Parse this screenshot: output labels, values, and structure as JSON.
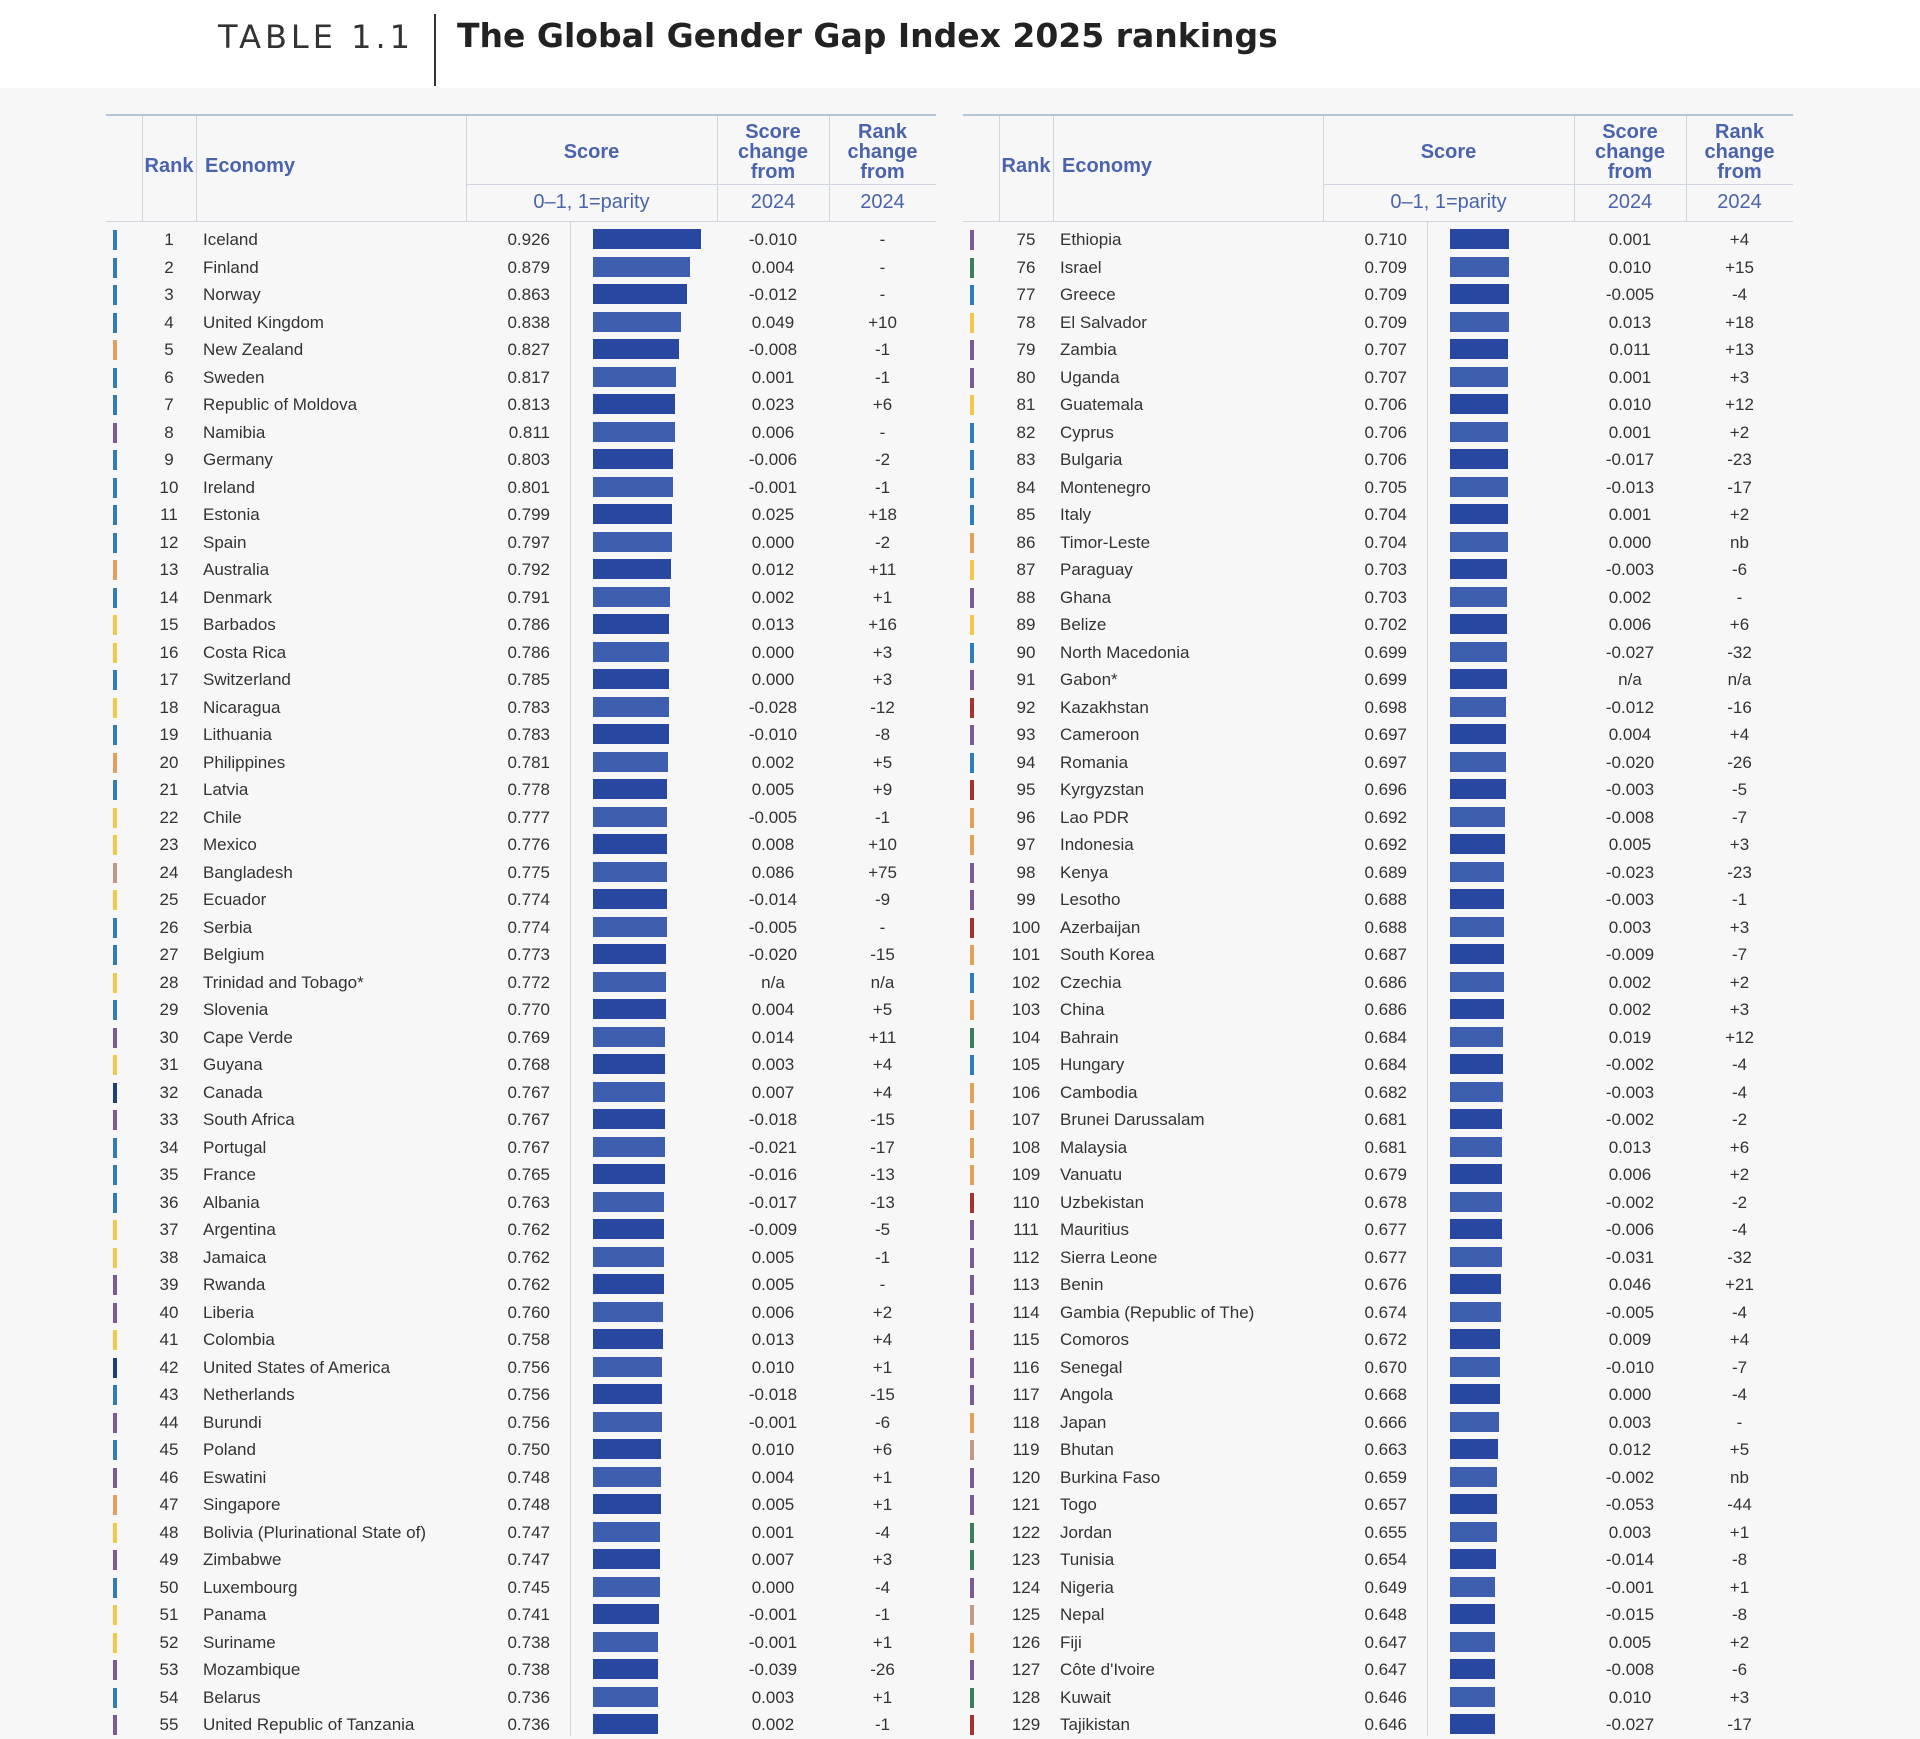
{
  "header": {
    "table_label": "TABLE 1.1",
    "title": "The Global Gender Gap Index 2025 rankings"
  },
  "columns": {
    "rank": "Rank",
    "economy": "Economy",
    "score": "Score",
    "score_sub": "0–1, 1=parity",
    "score_change": [
      "Score",
      "change",
      "from"
    ],
    "score_change_sub": "2024",
    "rank_change": [
      "Rank",
      "change",
      "from"
    ],
    "rank_change_sub": "2024"
  },
  "region_colors": {
    "Europe": "#2f7dbd",
    "Sub-Saharan Africa": "#7d5a96",
    "Latin America and the Caribbean": "#f2c84b",
    "East Asia and the Pacific": "#e0a15b",
    "Central Asia": "#a3352f",
    "Middle East and North Africa": "#3e7d5c",
    "Southern Asia": "#c29a84",
    "Northern America": "#1f3f7a"
  },
  "bar_scale_min": 0.45,
  "left_rows": [
    {
      "rank": "1",
      "economy": "Iceland",
      "score": 0.926,
      "score_change": "-0.010",
      "rank_change": "-",
      "color": "#2f7dbd"
    },
    {
      "rank": "2",
      "economy": "Finland",
      "score": 0.879,
      "score_change": "0.004",
      "rank_change": "-",
      "color": "#2f7dbd"
    },
    {
      "rank": "3",
      "economy": "Norway",
      "score": 0.863,
      "score_change": "-0.012",
      "rank_change": "-",
      "color": "#2f7dbd"
    },
    {
      "rank": "4",
      "economy": "United Kingdom",
      "score": 0.838,
      "score_change": "0.049",
      "rank_change": "+10",
      "color": "#2f7dbd"
    },
    {
      "rank": "5",
      "economy": "New Zealand",
      "score": 0.827,
      "score_change": "-0.008",
      "rank_change": "-1",
      "color": "#e0a15b"
    },
    {
      "rank": "6",
      "economy": "Sweden",
      "score": 0.817,
      "score_change": "0.001",
      "rank_change": "-1",
      "color": "#2f7dbd"
    },
    {
      "rank": "7",
      "economy": "Republic of Moldova",
      "score": 0.813,
      "score_change": "0.023",
      "rank_change": "+6",
      "color": "#2f7dbd"
    },
    {
      "rank": "8",
      "economy": "Namibia",
      "score": 0.811,
      "score_change": "0.006",
      "rank_change": "-",
      "color": "#7d5a96"
    },
    {
      "rank": "9",
      "economy": "Germany",
      "score": 0.803,
      "score_change": "-0.006",
      "rank_change": "-2",
      "color": "#2f7dbd"
    },
    {
      "rank": "10",
      "economy": "Ireland",
      "score": 0.801,
      "score_change": "-0.001",
      "rank_change": "-1",
      "color": "#2f7dbd"
    },
    {
      "rank": "11",
      "economy": "Estonia",
      "score": 0.799,
      "score_change": "0.025",
      "rank_change": "+18",
      "color": "#2f7dbd"
    },
    {
      "rank": "12",
      "economy": "Spain",
      "score": 0.797,
      "score_change": "0.000",
      "rank_change": "-2",
      "color": "#2f7dbd"
    },
    {
      "rank": "13",
      "economy": "Australia",
      "score": 0.792,
      "score_change": "0.012",
      "rank_change": "+11",
      "color": "#e0a15b"
    },
    {
      "rank": "14",
      "economy": "Denmark",
      "score": 0.791,
      "score_change": "0.002",
      "rank_change": "+1",
      "color": "#2f7dbd"
    },
    {
      "rank": "15",
      "economy": "Barbados",
      "score": 0.786,
      "score_change": "0.013",
      "rank_change": "+16",
      "color": "#f2c84b"
    },
    {
      "rank": "16",
      "economy": "Costa Rica",
      "score": 0.786,
      "score_change": "0.000",
      "rank_change": "+3",
      "color": "#f2c84b"
    },
    {
      "rank": "17",
      "economy": "Switzerland",
      "score": 0.785,
      "score_change": "0.000",
      "rank_change": "+3",
      "color": "#2f7dbd"
    },
    {
      "rank": "18",
      "economy": "Nicaragua",
      "score": 0.783,
      "score_change": "-0.028",
      "rank_change": "-12",
      "color": "#f2c84b"
    },
    {
      "rank": "19",
      "economy": "Lithuania",
      "score": 0.783,
      "score_change": "-0.010",
      "rank_change": "-8",
      "color": "#2f7dbd"
    },
    {
      "rank": "20",
      "economy": "Philippines",
      "score": 0.781,
      "score_change": "0.002",
      "rank_change": "+5",
      "color": "#e0a15b"
    },
    {
      "rank": "21",
      "economy": "Latvia",
      "score": 0.778,
      "score_change": "0.005",
      "rank_change": "+9",
      "color": "#2f7dbd"
    },
    {
      "rank": "22",
      "economy": "Chile",
      "score": 0.777,
      "score_change": "-0.005",
      "rank_change": "-1",
      "color": "#f2c84b"
    },
    {
      "rank": "23",
      "economy": "Mexico",
      "score": 0.776,
      "score_change": "0.008",
      "rank_change": "+10",
      "color": "#f2c84b"
    },
    {
      "rank": "24",
      "economy": "Bangladesh",
      "score": 0.775,
      "score_change": "0.086",
      "rank_change": "+75",
      "color": "#c29a84"
    },
    {
      "rank": "25",
      "economy": "Ecuador",
      "score": 0.774,
      "score_change": "-0.014",
      "rank_change": "-9",
      "color": "#f2c84b"
    },
    {
      "rank": "26",
      "economy": "Serbia",
      "score": 0.774,
      "score_change": "-0.005",
      "rank_change": "-",
      "color": "#2f7dbd"
    },
    {
      "rank": "27",
      "economy": "Belgium",
      "score": 0.773,
      "score_change": "-0.020",
      "rank_change": "-15",
      "color": "#2f7dbd"
    },
    {
      "rank": "28",
      "economy": "Trinidad and Tobago*",
      "score": 0.772,
      "score_change": "n/a",
      "rank_change": "n/a",
      "color": "#f2c84b"
    },
    {
      "rank": "29",
      "economy": "Slovenia",
      "score": 0.77,
      "score_change": "0.004",
      "rank_change": "+5",
      "color": "#2f7dbd"
    },
    {
      "rank": "30",
      "economy": "Cape Verde",
      "score": 0.769,
      "score_change": "0.014",
      "rank_change": "+11",
      "color": "#7d5a96"
    },
    {
      "rank": "31",
      "economy": "Guyana",
      "score": 0.768,
      "score_change": "0.003",
      "rank_change": "+4",
      "color": "#f2c84b"
    },
    {
      "rank": "32",
      "economy": "Canada",
      "score": 0.767,
      "score_change": "0.007",
      "rank_change": "+4",
      "color": "#1f3f7a"
    },
    {
      "rank": "33",
      "economy": "South Africa",
      "score": 0.767,
      "score_change": "-0.018",
      "rank_change": "-15",
      "color": "#7d5a96"
    },
    {
      "rank": "34",
      "economy": "Portugal",
      "score": 0.767,
      "score_change": "-0.021",
      "rank_change": "-17",
      "color": "#2f7dbd"
    },
    {
      "rank": "35",
      "economy": "France",
      "score": 0.765,
      "score_change": "-0.016",
      "rank_change": "-13",
      "color": "#2f7dbd"
    },
    {
      "rank": "36",
      "economy": "Albania",
      "score": 0.763,
      "score_change": "-0.017",
      "rank_change": "-13",
      "color": "#2f7dbd"
    },
    {
      "rank": "37",
      "economy": "Argentina",
      "score": 0.762,
      "score_change": "-0.009",
      "rank_change": "-5",
      "color": "#f2c84b"
    },
    {
      "rank": "38",
      "economy": "Jamaica",
      "score": 0.762,
      "score_change": "0.005",
      "rank_change": "-1",
      "color": "#f2c84b"
    },
    {
      "rank": "39",
      "economy": "Rwanda",
      "score": 0.762,
      "score_change": "0.005",
      "rank_change": "-",
      "color": "#7d5a96"
    },
    {
      "rank": "40",
      "economy": "Liberia",
      "score": 0.76,
      "score_change": "0.006",
      "rank_change": "+2",
      "color": "#7d5a96"
    },
    {
      "rank": "41",
      "economy": "Colombia",
      "score": 0.758,
      "score_change": "0.013",
      "rank_change": "+4",
      "color": "#f2c84b"
    },
    {
      "rank": "42",
      "economy": "United States of America",
      "score": 0.756,
      "score_change": "0.010",
      "rank_change": "+1",
      "color": "#1f3f7a"
    },
    {
      "rank": "43",
      "economy": "Netherlands",
      "score": 0.756,
      "score_change": "-0.018",
      "rank_change": "-15",
      "color": "#2f7dbd"
    },
    {
      "rank": "44",
      "economy": "Burundi",
      "score": 0.756,
      "score_change": "-0.001",
      "rank_change": "-6",
      "color": "#7d5a96"
    },
    {
      "rank": "45",
      "economy": "Poland",
      "score": 0.75,
      "score_change": "0.010",
      "rank_change": "+6",
      "color": "#2f7dbd"
    },
    {
      "rank": "46",
      "economy": "Eswatini",
      "score": 0.748,
      "score_change": "0.004",
      "rank_change": "+1",
      "color": "#7d5a96"
    },
    {
      "rank": "47",
      "economy": "Singapore",
      "score": 0.748,
      "score_change": "0.005",
      "rank_change": "+1",
      "color": "#e0a15b"
    },
    {
      "rank": "48",
      "economy": "Bolivia (Plurinational State of)",
      "score": 0.747,
      "score_change": "0.001",
      "rank_change": "-4",
      "color": "#f2c84b"
    },
    {
      "rank": "49",
      "economy": "Zimbabwe",
      "score": 0.747,
      "score_change": "0.007",
      "rank_change": "+3",
      "color": "#7d5a96"
    },
    {
      "rank": "50",
      "economy": "Luxembourg",
      "score": 0.745,
      "score_change": "0.000",
      "rank_change": "-4",
      "color": "#2f7dbd"
    },
    {
      "rank": "51",
      "economy": "Panama",
      "score": 0.741,
      "score_change": "-0.001",
      "rank_change": "-1",
      "color": "#f2c84b"
    },
    {
      "rank": "52",
      "economy": "Suriname",
      "score": 0.738,
      "score_change": "-0.001",
      "rank_change": "+1",
      "color": "#f2c84b"
    },
    {
      "rank": "53",
      "economy": "Mozambique",
      "score": 0.738,
      "score_change": "-0.039",
      "rank_change": "-26",
      "color": "#7d5a96"
    },
    {
      "rank": "54",
      "economy": "Belarus",
      "score": 0.736,
      "score_change": "0.003",
      "rank_change": "+1",
      "color": "#2f7dbd"
    },
    {
      "rank": "55",
      "economy": "United Republic of Tanzania",
      "score": 0.736,
      "score_change": "0.002",
      "rank_change": "-1",
      "color": "#7d5a96"
    }
  ],
  "right_rows": [
    {
      "rank": "75",
      "economy": "Ethiopia",
      "score": 0.71,
      "score_change": "0.001",
      "rank_change": "+4",
      "color": "#7d5a96"
    },
    {
      "rank": "76",
      "economy": "Israel",
      "score": 0.709,
      "score_change": "0.010",
      "rank_change": "+15",
      "color": "#3e7d5c"
    },
    {
      "rank": "77",
      "economy": "Greece",
      "score": 0.709,
      "score_change": "-0.005",
      "rank_change": "-4",
      "color": "#2f7dbd"
    },
    {
      "rank": "78",
      "economy": "El Salvador",
      "score": 0.709,
      "score_change": "0.013",
      "rank_change": "+18",
      "color": "#f2c84b"
    },
    {
      "rank": "79",
      "economy": "Zambia",
      "score": 0.707,
      "score_change": "0.011",
      "rank_change": "+13",
      "color": "#7d5a96"
    },
    {
      "rank": "80",
      "economy": "Uganda",
      "score": 0.707,
      "score_change": "0.001",
      "rank_change": "+3",
      "color": "#7d5a96"
    },
    {
      "rank": "81",
      "economy": "Guatemala",
      "score": 0.706,
      "score_change": "0.010",
      "rank_change": "+12",
      "color": "#f2c84b"
    },
    {
      "rank": "82",
      "economy": "Cyprus",
      "score": 0.706,
      "score_change": "0.001",
      "rank_change": "+2",
      "color": "#2f7dbd"
    },
    {
      "rank": "83",
      "economy": "Bulgaria",
      "score": 0.706,
      "score_change": "-0.017",
      "rank_change": "-23",
      "color": "#2f7dbd"
    },
    {
      "rank": "84",
      "economy": "Montenegro",
      "score": 0.705,
      "score_change": "-0.013",
      "rank_change": "-17",
      "color": "#2f7dbd"
    },
    {
      "rank": "85",
      "economy": "Italy",
      "score": 0.704,
      "score_change": "0.001",
      "rank_change": "+2",
      "color": "#2f7dbd"
    },
    {
      "rank": "86",
      "economy": "Timor-Leste",
      "score": 0.704,
      "score_change": "0.000",
      "rank_change": "nb",
      "color": "#e0a15b"
    },
    {
      "rank": "87",
      "economy": "Paraguay",
      "score": 0.703,
      "score_change": "-0.003",
      "rank_change": "-6",
      "color": "#f2c84b"
    },
    {
      "rank": "88",
      "economy": "Ghana",
      "score": 0.703,
      "score_change": "0.002",
      "rank_change": "-",
      "color": "#7d5a96"
    },
    {
      "rank": "89",
      "economy": "Belize",
      "score": 0.702,
      "score_change": "0.006",
      "rank_change": "+6",
      "color": "#f2c84b"
    },
    {
      "rank": "90",
      "economy": "North Macedonia",
      "score": 0.699,
      "score_change": "-0.027",
      "rank_change": "-32",
      "color": "#2f7dbd"
    },
    {
      "rank": "91",
      "economy": "Gabon*",
      "score": 0.699,
      "score_change": "n/a",
      "rank_change": "n/a",
      "color": "#7d5a96"
    },
    {
      "rank": "92",
      "economy": "Kazakhstan",
      "score": 0.698,
      "score_change": "-0.012",
      "rank_change": "-16",
      "color": "#a3352f"
    },
    {
      "rank": "93",
      "economy": "Cameroon",
      "score": 0.697,
      "score_change": "0.004",
      "rank_change": "+4",
      "color": "#7d5a96"
    },
    {
      "rank": "94",
      "economy": "Romania",
      "score": 0.697,
      "score_change": "-0.020",
      "rank_change": "-26",
      "color": "#2f7dbd"
    },
    {
      "rank": "95",
      "economy": "Kyrgyzstan",
      "score": 0.696,
      "score_change": "-0.003",
      "rank_change": "-5",
      "color": "#a3352f"
    },
    {
      "rank": "96",
      "economy": "Lao PDR",
      "score": 0.692,
      "score_change": "-0.008",
      "rank_change": "-7",
      "color": "#e0a15b"
    },
    {
      "rank": "97",
      "economy": "Indonesia",
      "score": 0.692,
      "score_change": "0.005",
      "rank_change": "+3",
      "color": "#e0a15b"
    },
    {
      "rank": "98",
      "economy": "Kenya",
      "score": 0.689,
      "score_change": "-0.023",
      "rank_change": "-23",
      "color": "#7d5a96"
    },
    {
      "rank": "99",
      "economy": "Lesotho",
      "score": 0.688,
      "score_change": "-0.003",
      "rank_change": "-1",
      "color": "#7d5a96"
    },
    {
      "rank": "100",
      "economy": "Azerbaijan",
      "score": 0.688,
      "score_change": "0.003",
      "rank_change": "+3",
      "color": "#a3352f"
    },
    {
      "rank": "101",
      "economy": "South Korea",
      "score": 0.687,
      "score_change": "-0.009",
      "rank_change": "-7",
      "color": "#e0a15b"
    },
    {
      "rank": "102",
      "economy": "Czechia",
      "score": 0.686,
      "score_change": "0.002",
      "rank_change": "+2",
      "color": "#2f7dbd"
    },
    {
      "rank": "103",
      "economy": "China",
      "score": 0.686,
      "score_change": "0.002",
      "rank_change": "+3",
      "color": "#e0a15b"
    },
    {
      "rank": "104",
      "economy": "Bahrain",
      "score": 0.684,
      "score_change": "0.019",
      "rank_change": "+12",
      "color": "#3e7d5c"
    },
    {
      "rank": "105",
      "economy": "Hungary",
      "score": 0.684,
      "score_change": "-0.002",
      "rank_change": "-4",
      "color": "#2f7dbd"
    },
    {
      "rank": "106",
      "economy": "Cambodia",
      "score": 0.682,
      "score_change": "-0.003",
      "rank_change": "-4",
      "color": "#e0a15b"
    },
    {
      "rank": "107",
      "economy": "Brunei Darussalam",
      "score": 0.681,
      "score_change": "-0.002",
      "rank_change": "-2",
      "color": "#e0a15b"
    },
    {
      "rank": "108",
      "economy": "Malaysia",
      "score": 0.681,
      "score_change": "0.013",
      "rank_change": "+6",
      "color": "#e0a15b"
    },
    {
      "rank": "109",
      "economy": "Vanuatu",
      "score": 0.679,
      "score_change": "0.006",
      "rank_change": "+2",
      "color": "#e0a15b"
    },
    {
      "rank": "110",
      "economy": "Uzbekistan",
      "score": 0.678,
      "score_change": "-0.002",
      "rank_change": "-2",
      "color": "#a3352f"
    },
    {
      "rank": "111",
      "economy": "Mauritius",
      "score": 0.677,
      "score_change": "-0.006",
      "rank_change": "-4",
      "color": "#7d5a96"
    },
    {
      "rank": "112",
      "economy": "Sierra Leone",
      "score": 0.677,
      "score_change": "-0.031",
      "rank_change": "-32",
      "color": "#7d5a96"
    },
    {
      "rank": "113",
      "economy": "Benin",
      "score": 0.676,
      "score_change": "0.046",
      "rank_change": "+21",
      "color": "#7d5a96"
    },
    {
      "rank": "114",
      "economy": "Gambia (Republic of The)",
      "score": 0.674,
      "score_change": "-0.005",
      "rank_change": "-4",
      "color": "#7d5a96"
    },
    {
      "rank": "115",
      "economy": "Comoros",
      "score": 0.672,
      "score_change": "0.009",
      "rank_change": "+4",
      "color": "#7d5a96"
    },
    {
      "rank": "116",
      "economy": "Senegal",
      "score": 0.67,
      "score_change": "-0.010",
      "rank_change": "-7",
      "color": "#7d5a96"
    },
    {
      "rank": "117",
      "economy": "Angola",
      "score": 0.668,
      "score_change": "0.000",
      "rank_change": "-4",
      "color": "#7d5a96"
    },
    {
      "rank": "118",
      "economy": "Japan",
      "score": 0.666,
      "score_change": "0.003",
      "rank_change": "-",
      "color": "#e0a15b"
    },
    {
      "rank": "119",
      "economy": "Bhutan",
      "score": 0.663,
      "score_change": "0.012",
      "rank_change": "+5",
      "color": "#c29a84"
    },
    {
      "rank": "120",
      "economy": "Burkina Faso",
      "score": 0.659,
      "score_change": "-0.002",
      "rank_change": "nb",
      "color": "#7d5a96"
    },
    {
      "rank": "121",
      "economy": "Togo",
      "score": 0.657,
      "score_change": "-0.053",
      "rank_change": "-44",
      "color": "#7d5a96"
    },
    {
      "rank": "122",
      "economy": "Jordan",
      "score": 0.655,
      "score_change": "0.003",
      "rank_change": "+1",
      "color": "#3e7d5c"
    },
    {
      "rank": "123",
      "economy": "Tunisia",
      "score": 0.654,
      "score_change": "-0.014",
      "rank_change": "-8",
      "color": "#3e7d5c"
    },
    {
      "rank": "124",
      "economy": "Nigeria",
      "score": 0.649,
      "score_change": "-0.001",
      "rank_change": "+1",
      "color": "#7d5a96"
    },
    {
      "rank": "125",
      "economy": "Nepal",
      "score": 0.648,
      "score_change": "-0.015",
      "rank_change": "-8",
      "color": "#c29a84"
    },
    {
      "rank": "126",
      "economy": "Fiji",
      "score": 0.647,
      "score_change": "0.005",
      "rank_change": "+2",
      "color": "#e0a15b"
    },
    {
      "rank": "127",
      "economy": "Côte d'Ivoire",
      "score": 0.647,
      "score_change": "-0.008",
      "rank_change": "-6",
      "color": "#7d5a96"
    },
    {
      "rank": "128",
      "economy": "Kuwait",
      "score": 0.646,
      "score_change": "0.010",
      "rank_change": "+3",
      "color": "#3e7d5c"
    },
    {
      "rank": "129",
      "economy": "Tajikistan",
      "score": 0.646,
      "score_change": "-0.027",
      "rank_change": "-17",
      "color": "#a3352f"
    }
  ]
}
